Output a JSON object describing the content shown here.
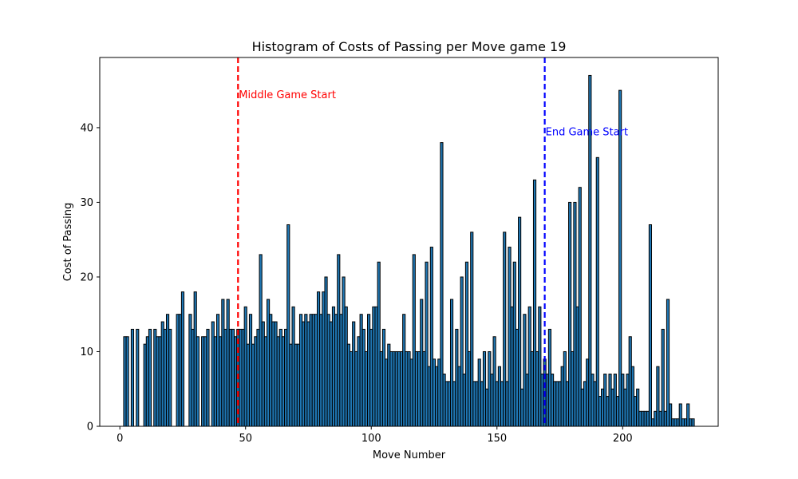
{
  "chart_data": {
    "type": "bar",
    "title": "Histogram of Costs of Passing per Move game 19",
    "xlabel": "Move Number",
    "ylabel": "Cost of Passing",
    "xlim": [
      -8,
      238
    ],
    "ylim": [
      0,
      49.4
    ],
    "xticks": [
      0,
      50,
      100,
      150,
      200
    ],
    "yticks": [
      0,
      10,
      20,
      30,
      40
    ],
    "grid": false,
    "bar_color": "#1f77b4",
    "bar_edge_color": "#000000",
    "x_start": 2,
    "values": [
      12,
      12,
      0,
      13,
      0,
      13,
      0,
      0,
      11,
      12,
      13,
      0,
      13,
      12,
      12,
      14,
      13,
      15,
      13,
      0,
      0,
      15,
      15,
      18,
      0,
      0,
      15,
      13,
      18,
      12,
      0,
      12,
      12,
      13,
      0,
      14,
      12,
      15,
      12,
      17,
      13,
      17,
      13,
      13,
      12,
      13,
      13,
      13,
      16,
      11,
      15,
      11,
      12,
      13,
      23,
      14,
      12,
      17,
      15,
      14,
      14,
      12,
      13,
      12,
      13,
      27,
      11,
      16,
      11,
      11,
      15,
      14,
      15,
      14,
      15,
      15,
      15,
      18,
      15,
      18,
      20,
      15,
      14,
      16,
      15,
      23,
      15,
      20,
      16,
      11,
      10,
      14,
      10,
      12,
      15,
      13,
      10,
      15,
      13,
      16,
      16,
      22,
      10,
      13,
      9,
      11,
      10,
      10,
      10,
      10,
      10,
      15,
      10,
      10,
      9,
      23,
      10,
      10,
      17,
      10,
      22,
      8,
      24,
      9,
      8,
      9,
      38,
      7,
      6,
      6,
      17,
      6,
      13,
      8,
      20,
      7,
      22,
      10,
      26,
      6,
      6,
      9,
      6,
      10,
      5,
      10,
      7,
      12,
      6,
      8,
      6,
      26,
      6,
      24,
      16,
      22,
      13,
      28,
      5,
      15,
      7,
      16,
      10,
      33,
      10,
      16,
      7,
      9,
      7,
      13,
      7,
      6,
      6,
      6,
      8,
      10,
      6,
      30,
      10,
      30,
      16,
      32,
      5,
      6,
      9,
      47,
      7,
      6,
      36,
      4,
      5,
      7,
      4,
      7,
      5,
      7,
      4,
      45,
      7,
      5,
      7,
      12,
      8,
      4,
      5,
      2,
      2,
      2,
      2,
      27,
      1,
      2,
      8,
      2,
      13,
      2,
      17,
      3,
      1,
      1,
      1,
      3,
      1,
      1,
      3,
      1,
      1
    ],
    "vlines": [
      {
        "x": 47,
        "color": "#ff0000",
        "label": "Middle Game Start",
        "label_y": 44.5
      },
      {
        "x": 169,
        "color": "#0000ff",
        "label": "End Game Start",
        "label_y": 39.5
      }
    ]
  }
}
